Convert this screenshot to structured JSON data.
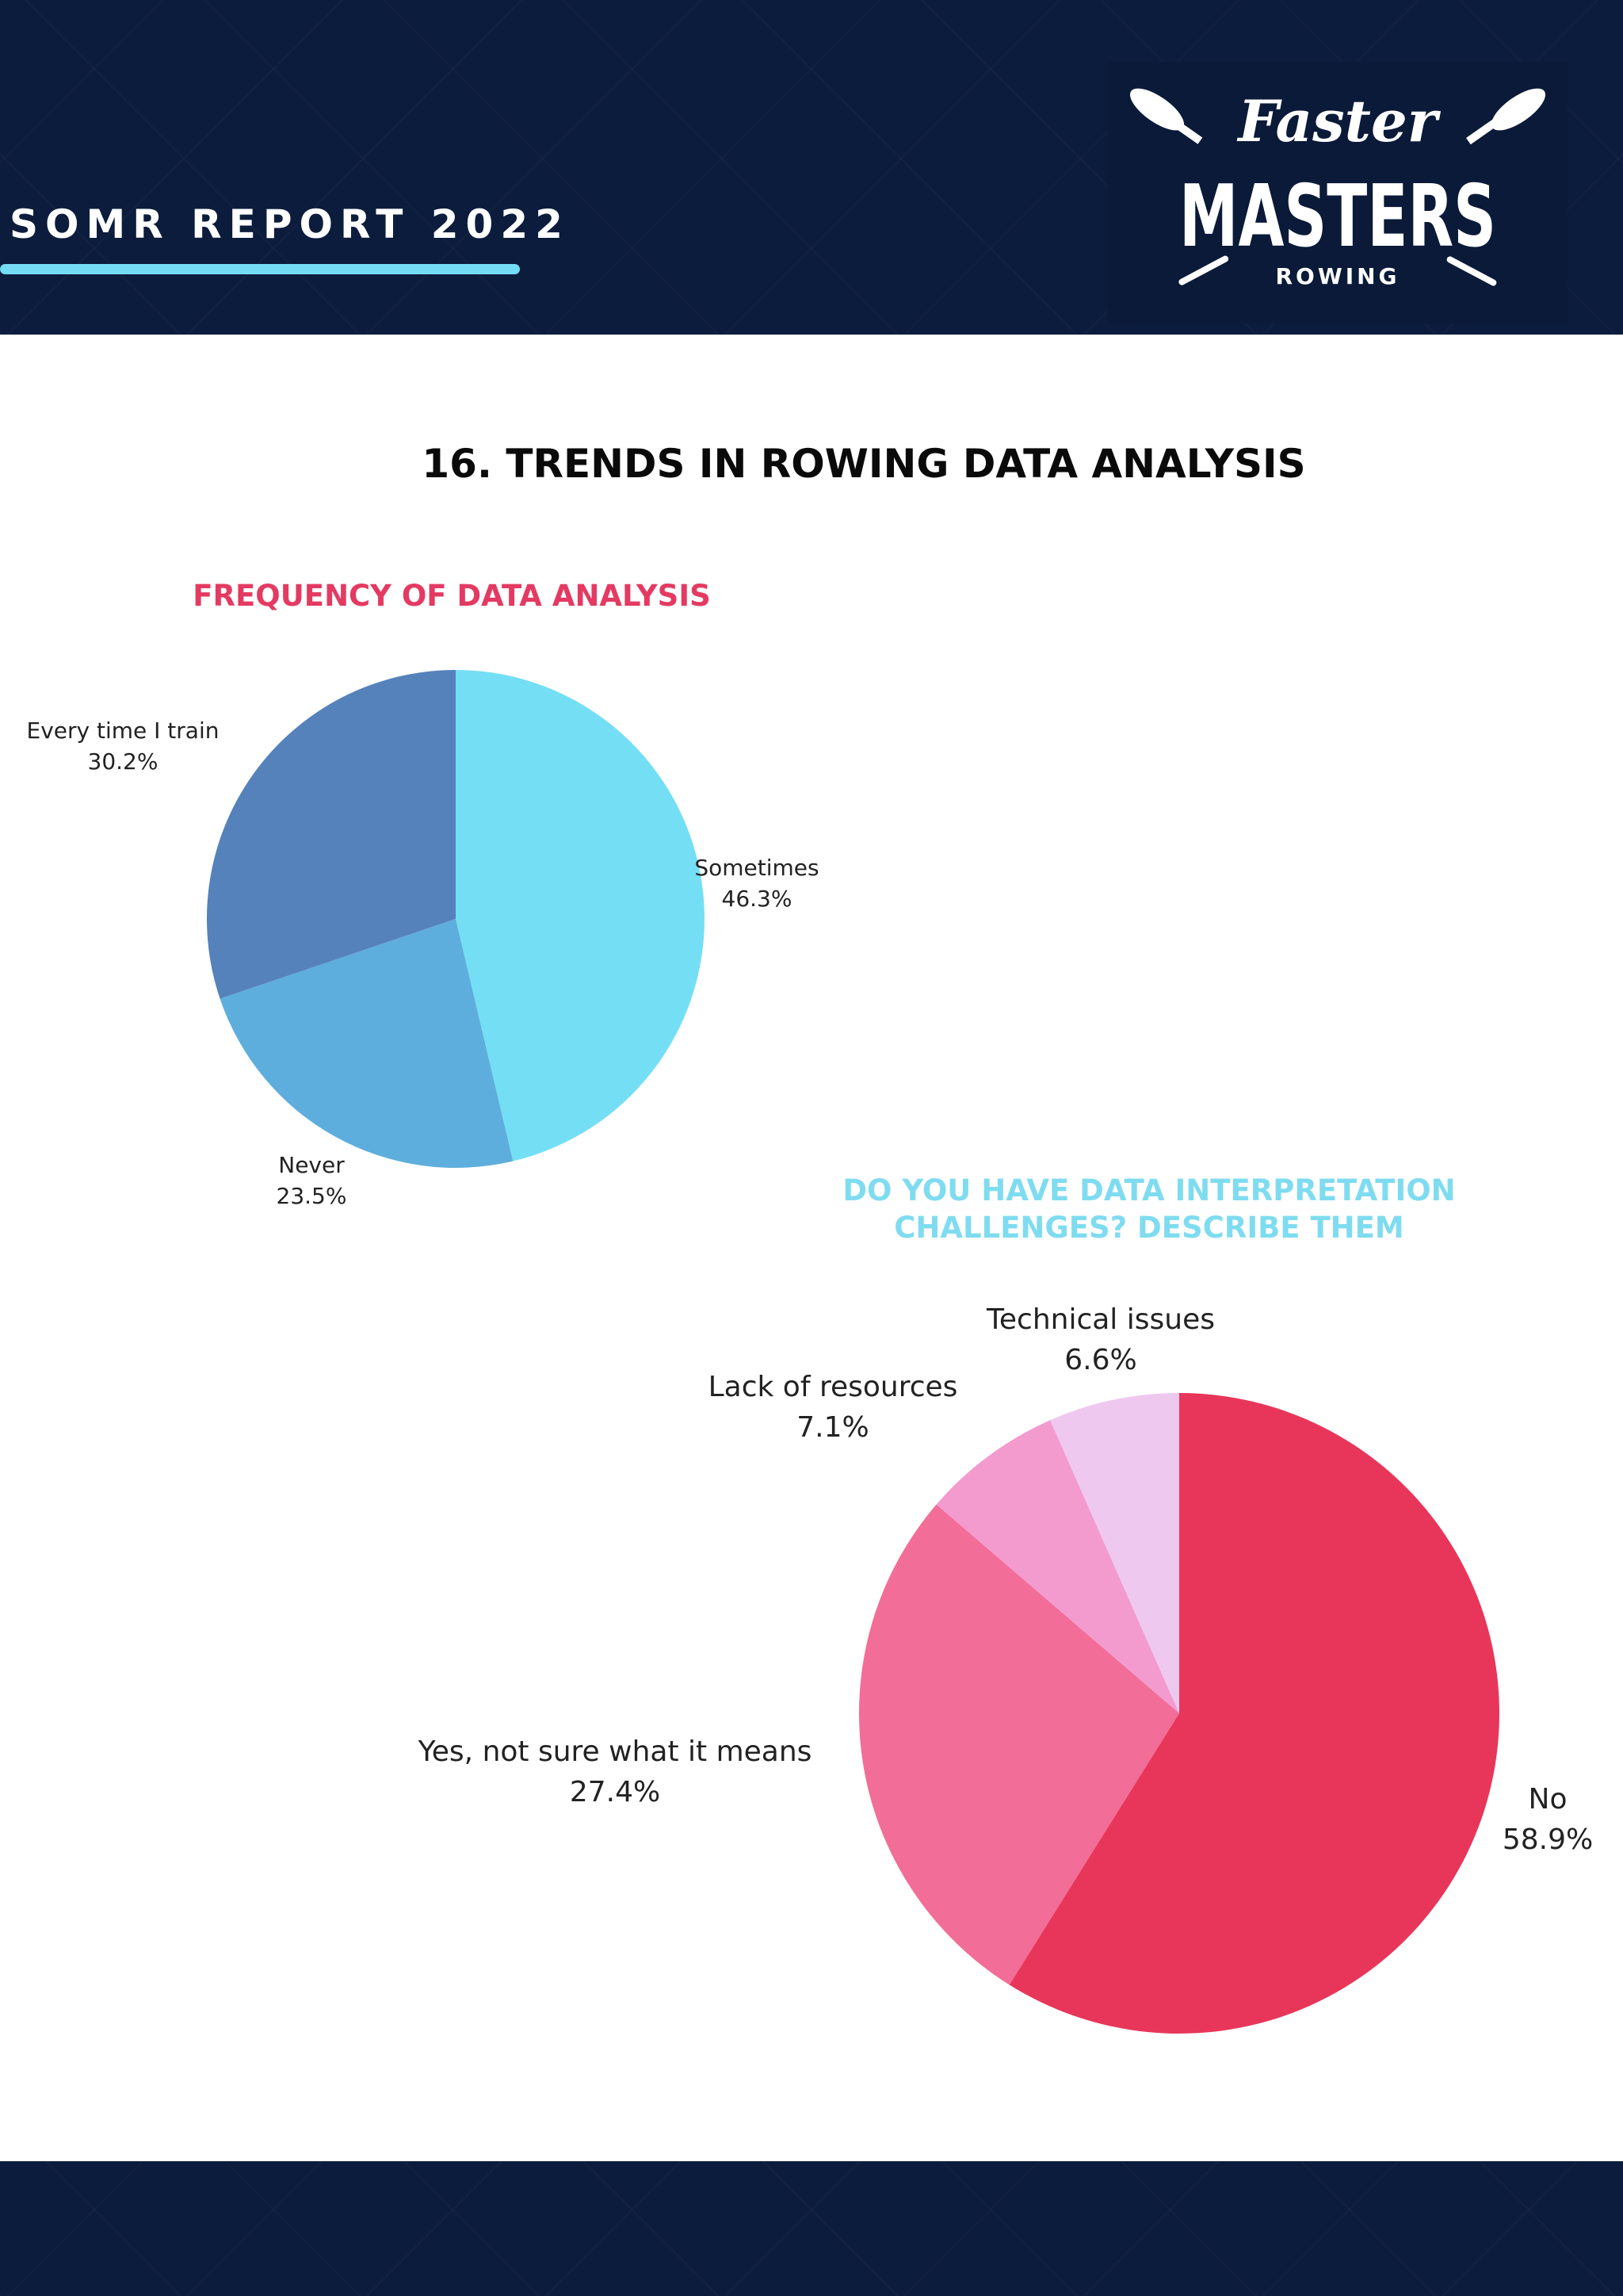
{
  "header": {
    "report_title": "SOMR REPORT 2022",
    "logo": {
      "script_text": "Faster",
      "main_text": "MASTERS",
      "sub_text": "ROWING",
      "icon": "crossed-oars-icon"
    }
  },
  "page_title": "16. TRENDS IN ROWING DATA ANALYSIS",
  "colors": {
    "navy": "#0c1c3c",
    "accent_cyan": "#74dcf4",
    "accent_pink": "#e43a62"
  },
  "chart_data": [
    {
      "type": "pie",
      "title": "FREQUENCY OF DATA ANALYSIS",
      "start_angle_deg": 0,
      "direction": "clockwise",
      "slices": [
        {
          "label": "Sometimes",
          "value": 46.3,
          "display": "46.3%",
          "color": "#74dff4"
        },
        {
          "label": "Never",
          "value": 23.5,
          "display": "23.5%",
          "color": "#5eaedd"
        },
        {
          "label": "Every time I train",
          "value": 30.2,
          "display": "30.2%",
          "color": "#5582ba"
        }
      ]
    },
    {
      "type": "pie",
      "title_lines": [
        "DO YOU HAVE DATA INTERPRETATION",
        "CHALLENGES? DESCRIBE THEM"
      ],
      "start_angle_deg": 0,
      "direction": "clockwise",
      "slices": [
        {
          "label": "No",
          "value": 58.9,
          "display": "58.9%",
          "color": "#e8365a"
        },
        {
          "label": "Yes, not sure what it means",
          "value": 27.4,
          "display": "27.4%",
          "color": "#f26d97"
        },
        {
          "label": "Lack of resources",
          "value": 7.1,
          "display": "7.1%",
          "color": "#f39bcf"
        },
        {
          "label": "Technical issues",
          "value": 6.6,
          "display": "6.6%",
          "color": "#efc8f0"
        }
      ]
    }
  ]
}
